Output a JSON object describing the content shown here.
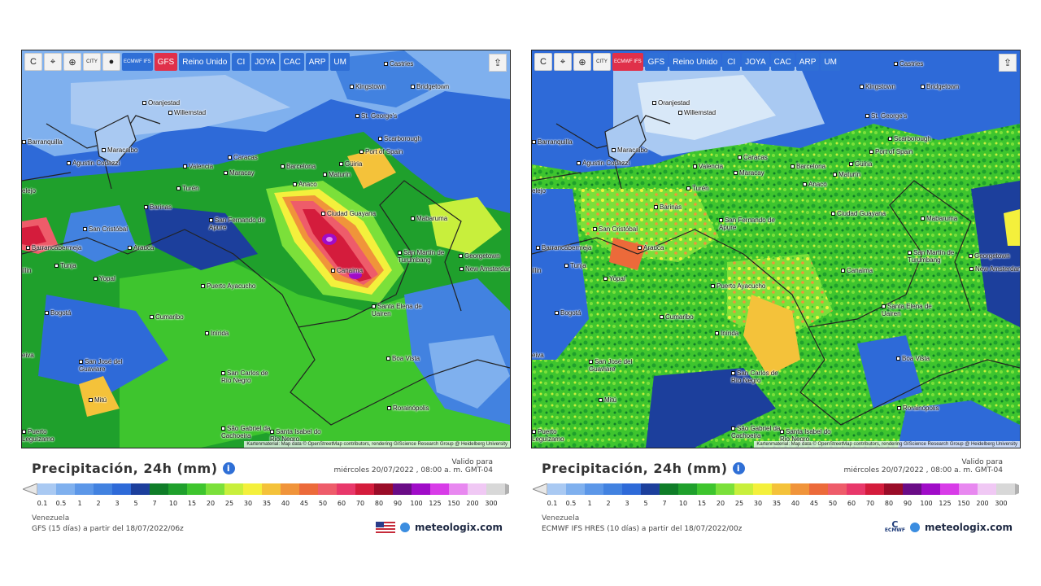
{
  "toolbar": {
    "items": [
      "C",
      "⌖",
      "⊕",
      "CITY",
      "●",
      "ECMWF IFS",
      "GFS",
      "Reino Unido",
      "CI",
      "JOYA",
      "CAC",
      "ARP",
      "UM"
    ],
    "share_icon": "share-icon"
  },
  "panels": [
    {
      "active_model": "GFS",
      "title": "Precipitación, 24h (mm)",
      "valid_label": "Valido para",
      "valid_time": "miércoles 20/07/2022 , 08:00 a. m. GMT-04",
      "region": "Venezuela",
      "model_info": "GFS (15 días) a partir del 18/07/2022/06z",
      "brand": "meteologix.com",
      "flag": "us-flag"
    },
    {
      "active_model": "ECMWF IFS",
      "title": "Precipitación, 24h (mm)",
      "valid_label": "Valido para",
      "valid_time": "miércoles 20/07/2022 , 08:00 a. m. GMT-04",
      "region": "Venezuela",
      "model_info": "ECMWF IFS HRES (10 días) a partir del 18/07/2022/00z",
      "brand": "meteologix.com",
      "logo_text": "ECMWF"
    }
  ],
  "attribution": "Kartenmaterial: Map data © OpenStreetMap contributors, rendering GIScience Research Group @ Heidelberg University",
  "cities": [
    {
      "name": "Castries"
    },
    {
      "name": "Kingstown"
    },
    {
      "name": "Bridgetown"
    },
    {
      "name": "Oranjestad"
    },
    {
      "name": "Willemstad"
    },
    {
      "name": "St. George's"
    },
    {
      "name": "Scarborough"
    },
    {
      "name": "Port of Spain"
    },
    {
      "name": "Barranquilla"
    },
    {
      "name": "Maracaibo"
    },
    {
      "name": "Caracas"
    },
    {
      "name": "Valencia"
    },
    {
      "name": "Maracay"
    },
    {
      "name": "Barcelona"
    },
    {
      "name": "Güiria"
    },
    {
      "name": "Maturín"
    },
    {
      "name": "Agustín Codazzi"
    },
    {
      "name": "Anaco"
    },
    {
      "name": "Turén"
    },
    {
      "name": "Barinas"
    },
    {
      "name": "Ciudad Guayana"
    },
    {
      "name": "San Fernando de Apure"
    },
    {
      "name": "Mabaruma"
    },
    {
      "name": "San Cristóbal"
    },
    {
      "name": "Barrancabermeja"
    },
    {
      "name": "Arauca"
    },
    {
      "name": "San Martín de Turumbang"
    },
    {
      "name": "Georgetown"
    },
    {
      "name": "New Amsterdam"
    },
    {
      "name": "Canaima"
    },
    {
      "name": "Tunja"
    },
    {
      "name": "Yopal"
    },
    {
      "name": "Puerto Ayacucho"
    },
    {
      "name": "Bogotá"
    },
    {
      "name": "Santa Elena de Uairen"
    },
    {
      "name": "Cumaribo"
    },
    {
      "name": "Inírida"
    },
    {
      "name": "San José del Guaviare"
    },
    {
      "name": "Boa Vista"
    },
    {
      "name": "San Carlos de Río Negro"
    },
    {
      "name": "Mitú"
    },
    {
      "name": "Rorainópolis"
    },
    {
      "name": "São Gabriel da Cachoeira"
    },
    {
      "name": "Santa Isabel do Rio Negro"
    },
    {
      "name": "Puerto Leguízamo"
    },
    {
      "name": "elejo"
    },
    {
      "name": "illin"
    },
    {
      "name": "eiva"
    }
  ],
  "legend": {
    "ticks": [
      "0.1",
      "0.5",
      "1",
      "2",
      "3",
      "5",
      "7",
      "10",
      "15",
      "20",
      "25",
      "30",
      "35",
      "40",
      "45",
      "50",
      "60",
      "70",
      "80",
      "90",
      "100",
      "125",
      "150",
      "200",
      "300"
    ],
    "colors": [
      "#a9c9f2",
      "#7fb0ee",
      "#5c97e8",
      "#4282e0",
      "#2e6ad8",
      "#1c3f9c",
      "#0f7d28",
      "#1fa02c",
      "#3ec52e",
      "#7be03a",
      "#c8ef3c",
      "#f4f03c",
      "#f4c23a",
      "#f0943a",
      "#ec6a3a",
      "#ee5c6a",
      "#e8386a",
      "#d41c3c",
      "#9a0c28",
      "#6a0c86",
      "#a00cc8",
      "#d83ce8",
      "#e888f0",
      "#f0c8f4",
      "#d8d8d8"
    ],
    "colors_extra": "#b0b0b0"
  }
}
